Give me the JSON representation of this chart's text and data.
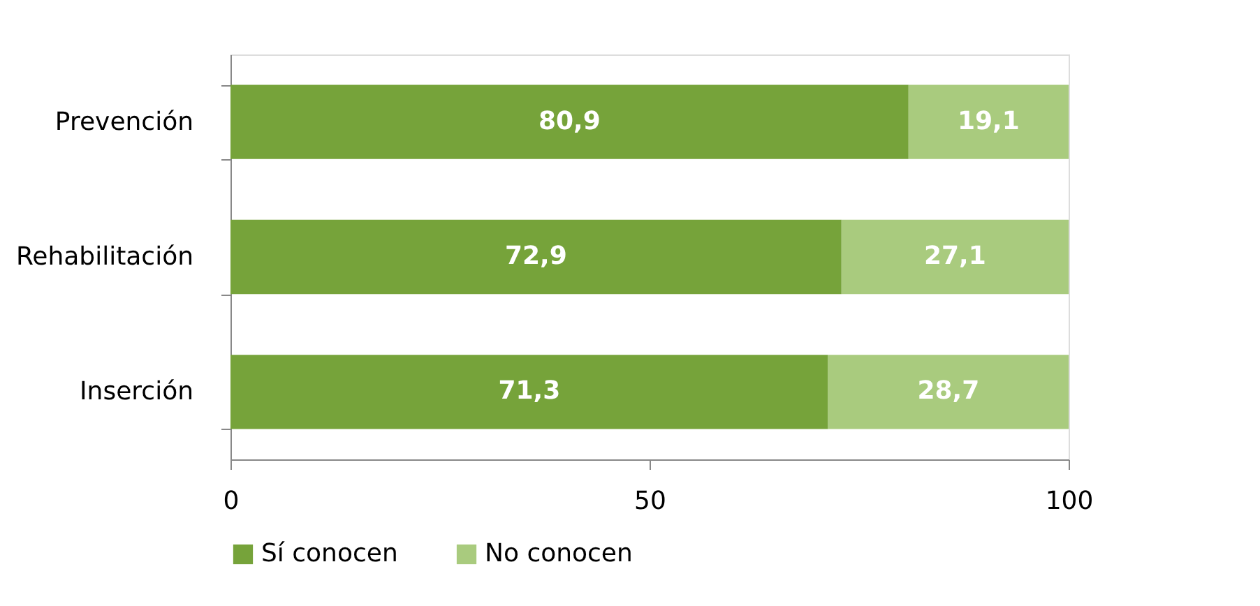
{
  "chart_data": {
    "type": "bar",
    "orientation": "horizontal",
    "stacked": true,
    "categories": [
      "Prevención",
      "Rehabilitación",
      "Inserción"
    ],
    "series": [
      {
        "name": "Sí conocen",
        "color": "#76a33a",
        "values": [
          80.9,
          72.9,
          71.3
        ],
        "value_labels": [
          "80,9",
          "72,9",
          "71,3"
        ]
      },
      {
        "name": "No conocen",
        "color": "#a9cb7e",
        "values": [
          19.1,
          27.1,
          28.7
        ],
        "value_labels": [
          "19,1",
          "27,1",
          "28,7"
        ]
      }
    ],
    "xlim": [
      0,
      100
    ],
    "xticks": [
      0,
      50,
      100
    ],
    "grid": false,
    "legend": "bottom"
  }
}
